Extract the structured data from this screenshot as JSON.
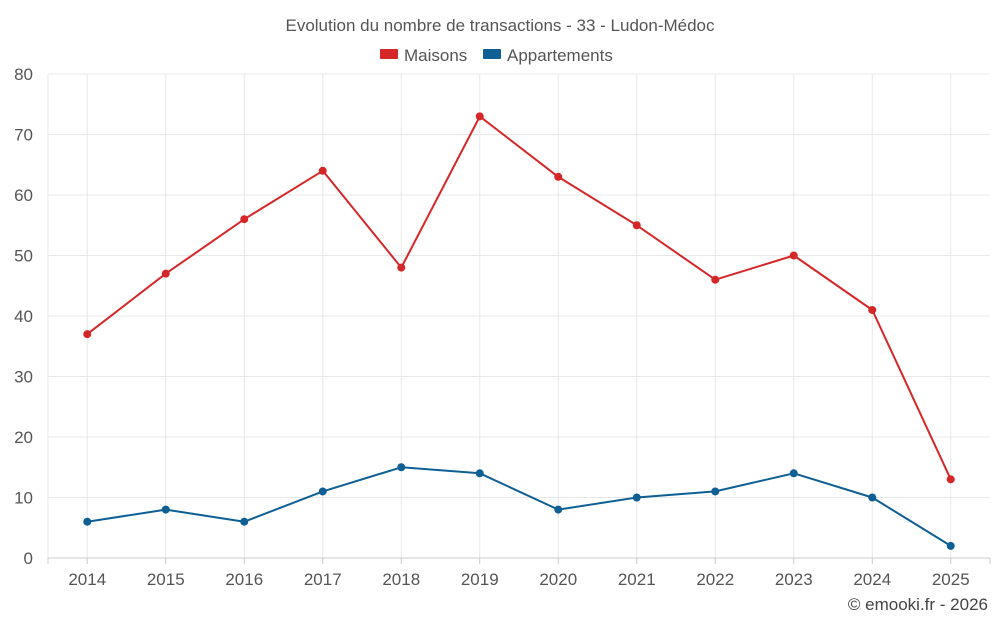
{
  "chart_data": {
    "type": "line",
    "title": "Evolution du nombre de transactions - 33 - Ludon-Médoc",
    "categories": [
      "2014",
      "2015",
      "2016",
      "2017",
      "2018",
      "2019",
      "2020",
      "2021",
      "2022",
      "2023",
      "2024",
      "2025"
    ],
    "series": [
      {
        "name": "Maisons",
        "color": "#d62728",
        "values": [
          37,
          47,
          56,
          64,
          48,
          73,
          63,
          55,
          46,
          50,
          41,
          13
        ]
      },
      {
        "name": "Appartements",
        "color": "#0e5f94",
        "values": [
          6,
          8,
          6,
          11,
          15,
          14,
          8,
          10,
          11,
          14,
          10,
          2
        ]
      }
    ],
    "ylim": [
      0,
      80
    ],
    "yticks": [
      0,
      10,
      20,
      30,
      40,
      50,
      60,
      70,
      80
    ],
    "xlabel": "",
    "ylabel": "",
    "legend": "top-center",
    "grid": true
  },
  "credit": "© emooki.fr - 2026"
}
